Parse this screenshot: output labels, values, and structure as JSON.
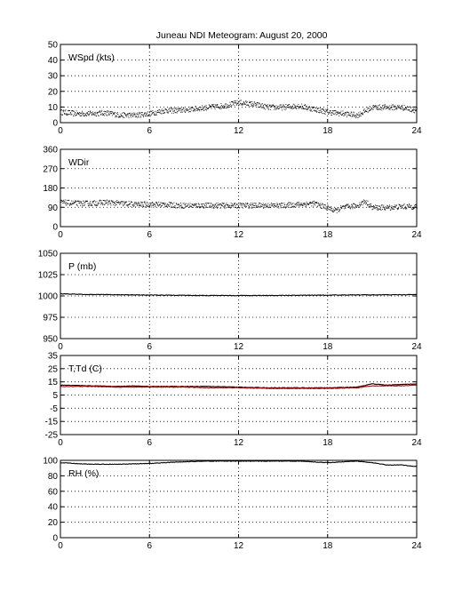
{
  "chart_data": {
    "type": "line",
    "title": "Juneau NDI Meteogram:",
    "subtitle": "August 20, 2000",
    "x_ticks": [
      0,
      6,
      12,
      18,
      24
    ],
    "xlim": [
      0,
      24
    ],
    "grid": true,
    "panels": [
      {
        "id": "wspd",
        "label": "WSpd (kts)",
        "ylim": [
          0,
          50
        ],
        "y_ticks": [
          0,
          10,
          20,
          30,
          40,
          50
        ],
        "series": [
          {
            "style": "dots",
            "color": "#000000",
            "x": [
              0,
              1,
              2,
              3,
              4,
              5,
              6,
              7,
              8,
              9,
              10,
              11,
              12,
              13,
              14,
              15,
              16,
              17,
              18,
              19,
              20,
              21,
              22,
              23,
              24
            ],
            "y": [
              7,
              6,
              6,
              6.5,
              5,
              5,
              6,
              8,
              8,
              9,
              10,
              11,
              13,
              12,
              10,
              10,
              11,
              9,
              7,
              6,
              5,
              10,
              10,
              10,
              8
            ]
          }
        ]
      },
      {
        "id": "wdir",
        "label": "WDir",
        "ylim": [
          0,
          360
        ],
        "y_ticks": [
          0,
          90,
          180,
          270,
          360
        ],
        "series": [
          {
            "style": "dots",
            "color": "#000000",
            "x": [
              0,
              1,
              2,
              3,
              4,
              5,
              6,
              7,
              8,
              9,
              10,
              11,
              12,
              13,
              14,
              15,
              16,
              17,
              18,
              18.5,
              19,
              20,
              20.5,
              21,
              22,
              23,
              24
            ],
            "y": [
              115,
              110,
              110,
              115,
              110,
              105,
              105,
              105,
              100,
              100,
              100,
              100,
              100,
              100,
              100,
              100,
              105,
              110,
              90,
              75,
              90,
              100,
              120,
              90,
              90,
              95,
              95
            ]
          }
        ]
      },
      {
        "id": "pres",
        "label": "P (mb)",
        "ylim": [
          950,
          1050
        ],
        "y_ticks": [
          950,
          975,
          1000,
          1025,
          1050
        ],
        "series": [
          {
            "style": "line",
            "color": "#000000",
            "x": [
              0,
              1.5,
              6,
              10,
              12,
              14,
              18,
              24
            ],
            "y": [
              1002.5,
              1001.8,
              1001,
              1000.5,
              1000.5,
              1000.5,
              1001,
              1001.5
            ]
          }
        ]
      },
      {
        "id": "temp",
        "label": "T,Td (C)",
        "ylim": [
          -25,
          35
        ],
        "y_ticks": [
          -25,
          -15,
          -5,
          5,
          15,
          25,
          35
        ],
        "series": [
          {
            "style": "line",
            "color": "#000000",
            "x": [
              0,
              2,
              4,
              5,
              6,
              8,
              10,
              12,
              14,
              16,
              18,
              20,
              21,
              22,
              23,
              24
            ],
            "y": [
              12.5,
              12,
              11.5,
              12,
              11.5,
              11.5,
              11.5,
              11,
              10.5,
              10.5,
              10.5,
              11,
              13.5,
              12.5,
              13,
              13.5
            ]
          },
          {
            "style": "line",
            "color": "#cc0000",
            "x": [
              0,
              2,
              4,
              6,
              8,
              10,
              12,
              14,
              16,
              18,
              20,
              21,
              22,
              23,
              24
            ],
            "y": [
              11.5,
              11.5,
              11,
              11,
              11,
              10.5,
              10.5,
              10,
              10,
              10,
              10.5,
              12,
              12,
              12,
              12.5
            ]
          }
        ]
      },
      {
        "id": "rh",
        "label": "RH (%)",
        "ylim": [
          0,
          100
        ],
        "y_ticks": [
          0,
          20,
          40,
          60,
          80,
          100
        ],
        "series": [
          {
            "style": "line",
            "color": "#000000",
            "x": [
              0,
              2,
              4,
              6,
              8,
              10,
              12,
              14,
              16,
              18,
              20,
              21,
              22,
              23,
              24
            ],
            "y": [
              97,
              95,
              95,
              96,
              98,
              99,
              99,
              99,
              99,
              97,
              99,
              97,
              94,
              94,
              92
            ]
          }
        ]
      }
    ]
  }
}
